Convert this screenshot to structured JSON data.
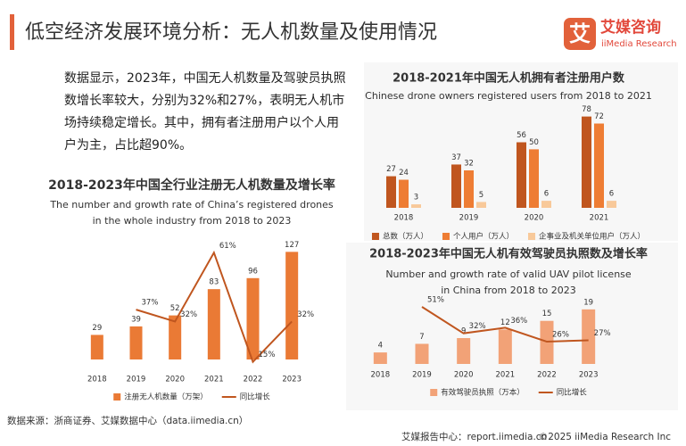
{
  "header": {
    "title": "低空经济发展环境分析：无人机数量及使用情况",
    "logo_icon": "艾",
    "logo_name": "艾媒咨询",
    "logo_sub": "iiMedia Research"
  },
  "summary": "数据显示，2023年，中国无人机数量及驾驶员执照数增长率较大，分别为32%和27%，表明无人机市场持续稳定增长。其中，拥有者注册用户以个人用户为主，占比超90%。",
  "footer": {
    "source": "数据来源：浙商证券、艾媒数据中心（data.iimedia.cn）",
    "report": "艾媒报告中心：report.iimedia.cn",
    "copyright": "©2025  iiMedia Research Inc"
  },
  "chart_data": [
    {
      "type": "combo",
      "title": "2018-2023年中国全行业注册无人机数量及增长率",
      "subtitle": [
        "The number and growth rate of China’s registered drones",
        "in the whole industry from 2018 to 2023"
      ],
      "categories": [
        "2018",
        "2019",
        "2020",
        "2021",
        "2022",
        "2023"
      ],
      "series": [
        {
          "name": "注册无人机数量（万架）",
          "color": "#ea7a35",
          "values": [
            29,
            39,
            52,
            83,
            96,
            127
          ]
        },
        {
          "name": "同比增长",
          "color": "#c0561f",
          "axis": "y2",
          "values": [
            null,
            37,
            32,
            61,
            15,
            32
          ],
          "value_labels": [
            null,
            "37%",
            "32%",
            "61%",
            "15%",
            "32%"
          ]
        }
      ],
      "ylim": [
        0,
        140
      ],
      "y2lim": [
        16,
        66
      ]
    },
    {
      "type": "bar",
      "title": "2018-2021年中国无人机拥有者注册用户数",
      "subtitle": [
        "Chinese drone owners registered users from 2018 to 2021"
      ],
      "categories": [
        "2018",
        "2019",
        "2020",
        "2021"
      ],
      "series": [
        {
          "name": "总数（万人）",
          "color": "#c0561f",
          "values": [
            27,
            37,
            56,
            78
          ]
        },
        {
          "name": "个人用户（万人）",
          "color": "#ee7d34",
          "values": [
            24,
            32,
            50,
            72
          ]
        },
        {
          "name": "企事业及机关单位用户（万人）",
          "color": "#f8c99a",
          "values": [
            3,
            5,
            6,
            6
          ]
        }
      ],
      "ylim": [
        0,
        80
      ]
    },
    {
      "type": "combo",
      "title": "2018-2023年中国无人机有效驾驶员执照数及增长率",
      "subtitle": [
        "Number and growth rate of valid UAV pilot license",
        "in China  from 2018 to 2023"
      ],
      "categories": [
        "2018",
        "2019",
        "2020",
        "2021",
        "2022",
        "2023"
      ],
      "series": [
        {
          "name": "有效驾驶员执照（万本）",
          "color": "#f2a277",
          "values": [
            4,
            7,
            9,
            12,
            15,
            19
          ]
        },
        {
          "name": "同比增长",
          "color": "#c0561f",
          "axis": "y2",
          "values": [
            null,
            51,
            32,
            36,
            26,
            27
          ],
          "value_labels": [
            null,
            "51%",
            "32%",
            "36%",
            "26%",
            "27%"
          ]
        }
      ],
      "ylim": [
        0,
        32
      ],
      "y2lim": [
        10,
        76
      ]
    }
  ]
}
